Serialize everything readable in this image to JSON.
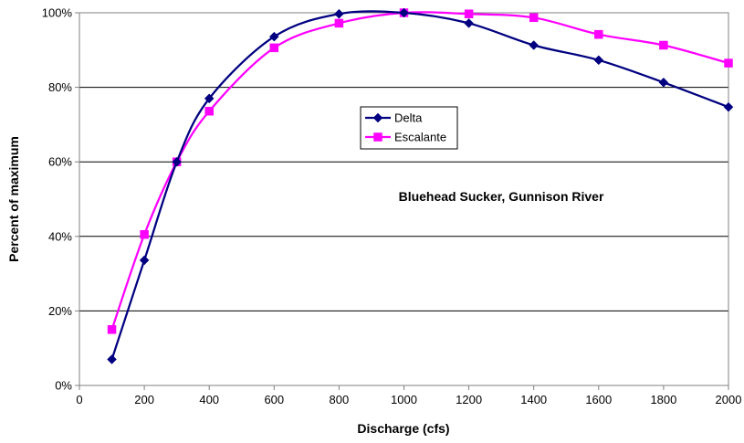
{
  "chart_data": {
    "type": "line",
    "title": "",
    "annotation": "Bluehead Sucker, Gunnison River",
    "xlabel": "Discharge (cfs)",
    "ylabel": "Percent of maximum",
    "xlim": [
      0,
      2000
    ],
    "ylim": [
      0,
      100
    ],
    "x_ticks": [
      "0",
      "200",
      "400",
      "600",
      "800",
      "1000",
      "1200",
      "1400",
      "1600",
      "1800",
      "2000"
    ],
    "y_ticks": [
      "0%",
      "20%",
      "40%",
      "60%",
      "80%",
      "100%"
    ],
    "grid": "horizontal",
    "legend_position": "center",
    "x": [
      100,
      200,
      300,
      400,
      600,
      800,
      1000,
      1200,
      1400,
      1600,
      1800,
      2000
    ],
    "series": [
      {
        "name": "Delta",
        "color": "#000080",
        "marker": "diamond",
        "values": [
          7,
          33.6,
          60,
          77,
          93.6,
          99.7,
          100,
          97.2,
          91.3,
          87.3,
          81.3,
          74.7
        ]
      },
      {
        "name": "Escalante",
        "color": "#FF00FF",
        "marker": "square",
        "values": [
          15,
          40.5,
          60,
          73.6,
          90.6,
          97.2,
          100,
          99.7,
          98.7,
          94.2,
          91.3,
          86.5
        ]
      }
    ]
  }
}
